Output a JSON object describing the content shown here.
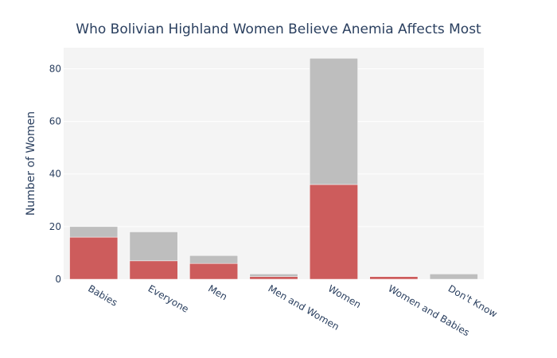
{
  "chart_data": {
    "type": "bar",
    "barmode": "stack",
    "title": "Who Bolivian Highland Women Believe Anemia Affects Most",
    "xlabel": "",
    "ylabel": "Number of Women",
    "ylim": [
      0,
      88
    ],
    "yticks": [
      0,
      20,
      40,
      60,
      80
    ],
    "grid": true,
    "legend": "none",
    "categories": [
      "Babies",
      "Everyone",
      "Men",
      "Men and Women",
      "Women",
      "Women and Babies",
      "Don't Know"
    ],
    "series": [
      {
        "values": [
          16,
          7,
          6,
          1,
          36,
          1,
          0
        ],
        "color": "#cd5c5c"
      },
      {
        "values": [
          4,
          11,
          3,
          1,
          48,
          0,
          2
        ],
        "color": "#bebebe"
      }
    ],
    "plot_background": "#f4f4f4",
    "text_color": "#2a3f5f"
  }
}
